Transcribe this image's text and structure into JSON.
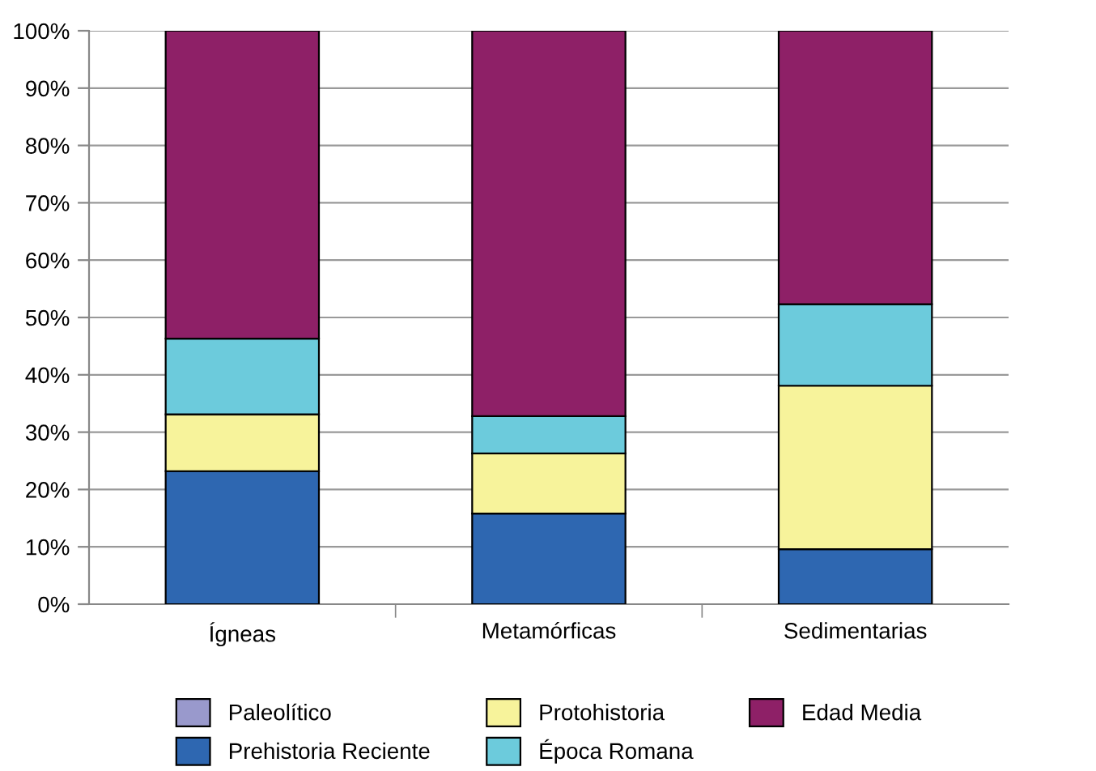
{
  "chart_data": {
    "type": "bar",
    "stacked": true,
    "categories": [
      "Ígneas",
      "Metamórficas",
      "Sedimentarias"
    ],
    "series": [
      {
        "name": "Paleolítico",
        "color": "#9999cc",
        "values": [
          0,
          0,
          0
        ]
      },
      {
        "name": "Prehistoria Reciente",
        "color": "#2e67b1",
        "values": [
          23.2,
          15.8,
          9.6
        ]
      },
      {
        "name": "Protohistoria",
        "color": "#f7f39b",
        "values": [
          9.9,
          10.5,
          28.5
        ]
      },
      {
        "name": "Época Romana",
        "color": "#6ccbdc",
        "values": [
          13.2,
          6.5,
          14.2
        ]
      },
      {
        "name": "Edad Media",
        "color": "#8e2067",
        "values": [
          53.7,
          67.2,
          47.7
        ]
      }
    ],
    "ylim": [
      0,
      100
    ],
    "yticks": [
      {
        "value": 0,
        "label": "0%"
      },
      {
        "value": 10,
        "label": "10%"
      },
      {
        "value": 20,
        "label": "20%"
      },
      {
        "value": 30,
        "label": "30%"
      },
      {
        "value": 40,
        "label": "40%"
      },
      {
        "value": 50,
        "label": "50%"
      },
      {
        "value": 60,
        "label": "60%"
      },
      {
        "value": 70,
        "label": "70%"
      },
      {
        "value": 80,
        "label": "80%"
      },
      {
        "value": 90,
        "label": "90%"
      },
      {
        "value": 100,
        "label": "100%"
      }
    ],
    "grid": "y",
    "legend": "bottom"
  }
}
